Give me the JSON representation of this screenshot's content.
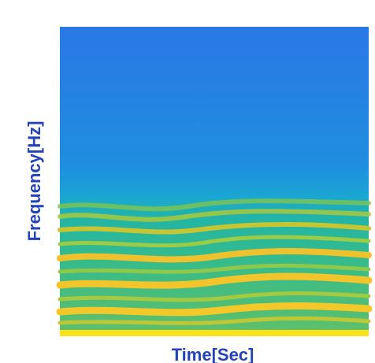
{
  "chart_data": {
    "type": "spectrogram",
    "x_label": "Time[Sec]",
    "y_label": "Frequency[Hz]"
  }
}
